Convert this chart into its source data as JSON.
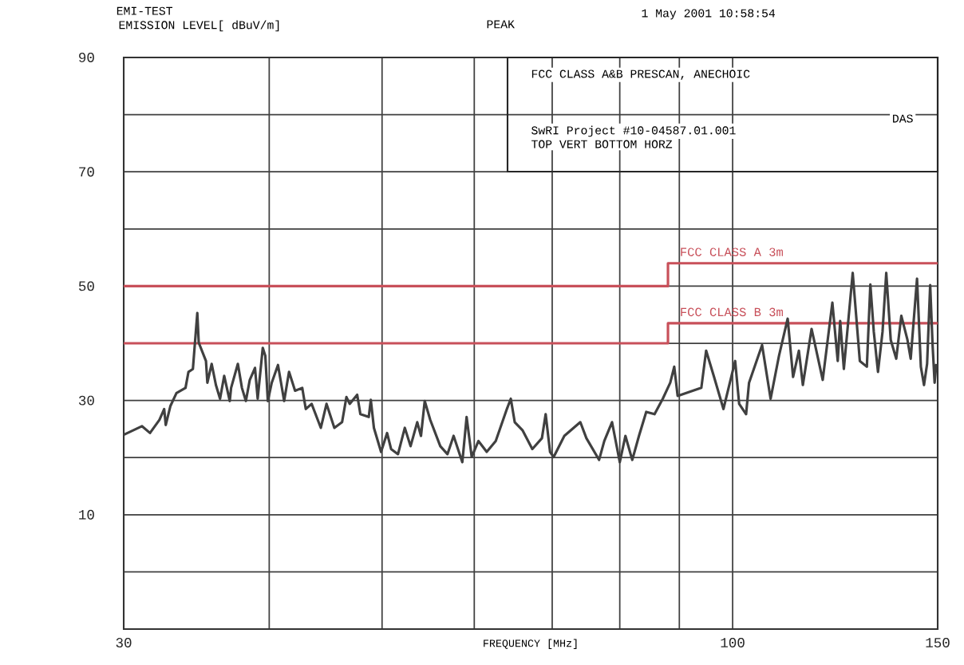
{
  "chart_data": {
    "type": "line",
    "title": "EMI-TEST",
    "xlabel": "FREQUENCY [MHz]",
    "annotations": [
      "EMISSION LEVEL[ dBuV/m]",
      "PEAK",
      "1 May 2001   10:58:54",
      "FCC CLASS A&B PRESCAN, ANECHOIC",
      "DAS",
      "SwRI Project #10-04587.01.001",
      "TOP VERT BOTTOM HORZ"
    ],
    "log": "x",
    "grid": true,
    "line_style": "solid",
    "xlim": [
      30,
      150
    ],
    "xticks": [
      30,
      {
        "value": 40,
        "label": null
      },
      {
        "value": 50,
        "label": null
      },
      {
        "value": 60,
        "label": null
      },
      {
        "value": 70,
        "label": null
      },
      {
        "value": 80,
        "label": null
      },
      {
        "value": 90,
        "label": null
      },
      100,
      150
    ],
    "ylim": [
      -10,
      90
    ],
    "yticks": [
      {
        "value": 0,
        "label": null
      },
      10,
      {
        "value": 20,
        "label": null
      },
      30,
      {
        "value": 40,
        "label": null
      },
      50,
      {
        "value": 60,
        "label": null
      },
      70,
      {
        "value": 80,
        "label": null
      },
      90
    ],
    "series": [
      {
        "name": "FCC CLASS A  3m",
        "color": "#c8505a",
        "x": [
          30,
          88,
          88,
          150
        ],
        "values": [
          50,
          50,
          54,
          54
        ]
      },
      {
        "name": "FCC CLASS B  3m",
        "color": "#c8505a",
        "x": [
          30,
          88,
          88,
          150
        ],
        "values": [
          40,
          40,
          43.5,
          43.5
        ]
      },
      {
        "color": "#404040",
        "x": [
          30,
          31.1,
          31.6,
          32.2,
          32.5,
          32.6,
          32.9,
          33.3,
          33.9,
          34.1,
          34.4,
          34.7,
          34.8,
          35.3,
          35.4,
          35.7,
          36.0,
          36.3,
          36.6,
          37.0,
          37.1,
          37.6,
          37.9,
          38.2,
          38.5,
          38.9,
          39.1,
          39.5,
          39.7,
          39.9,
          40.2,
          40.7,
          41.2,
          41.6,
          42.1,
          42.7,
          43.0,
          43.5,
          44.3,
          44.8,
          45.5,
          46.2,
          46.6,
          46.9,
          47.6,
          47.9,
          48.7,
          48.9,
          49.2,
          49.9,
          50.5,
          50.9,
          51.6,
          52.3,
          52.9,
          53.6,
          54.0,
          54.4,
          55.0,
          56.1,
          56.9,
          57.6,
          58.6,
          59.1,
          59.7,
          60.5,
          61.5,
          62.6,
          64.0,
          64.5,
          65.0,
          66.0,
          67.3,
          68.6,
          69.1,
          69.7,
          70.2,
          71.7,
          74.0,
          74.9,
          76.8,
          77.6,
          78.8,
          80.0,
          80.9,
          82.0,
          83.1,
          84.3,
          85.7,
          87.1,
          88.4,
          89.1,
          89.7,
          94.0,
          94.9,
          96.4,
          98.2,
          100.5,
          101.3,
          102.7,
          103.3,
          106.0,
          107.8,
          109.6,
          111.5,
          112.7,
          114.0,
          114.9,
          116.9,
          119.5,
          121.8,
          123.1,
          123.7,
          124.6,
          126.8,
          128.6,
          130.4,
          131.3,
          132.2,
          133.3,
          134.5,
          135.5,
          136.7,
          138.2,
          139.6,
          141.3,
          142.2,
          144.0,
          145.1,
          146.0,
          146.9,
          147.8,
          148.5,
          149.1,
          149.6
        ],
        "values": [
          24,
          25.5,
          24.3,
          26.6,
          28.5,
          25.7,
          29,
          31.3,
          32.2,
          35,
          35.5,
          45.3,
          40.1,
          36.9,
          33.1,
          36.4,
          32.7,
          30.3,
          34.3,
          29.9,
          32.2,
          36.4,
          32.2,
          29.9,
          33.6,
          35.7,
          30.3,
          39.2,
          37.8,
          29.9,
          33.1,
          36.2,
          29.9,
          35,
          31.7,
          32.2,
          28.5,
          29.4,
          25.2,
          29.4,
          25.2,
          26.2,
          30.6,
          29.4,
          31,
          27.6,
          27.1,
          30.1,
          25.2,
          21,
          24.3,
          21.5,
          20.6,
          25.2,
          22,
          26.2,
          23.8,
          29.9,
          26.6,
          22,
          20.6,
          23.8,
          19.2,
          27.1,
          20.1,
          22.9,
          21,
          22.9,
          28.5,
          30.3,
          26.2,
          24.8,
          21.5,
          23.4,
          27.6,
          21,
          20.1,
          23.8,
          26.2,
          23.4,
          19.6,
          22.9,
          26.2,
          19.2,
          23.8,
          19.6,
          23.8,
          28,
          27.6,
          30.3,
          33.1,
          35.9,
          30.8,
          32.2,
          38.7,
          34.1,
          28.5,
          36.9,
          29.4,
          27.6,
          33.1,
          39.7,
          30.3,
          37.8,
          44.3,
          34.1,
          38.7,
          32.7,
          42.5,
          33.6,
          47.1,
          36.9,
          43.9,
          35.5,
          52.3,
          36.9,
          35.9,
          50.3,
          42,
          35,
          42,
          52.3,
          40.6,
          37.3,
          44.8,
          40.6,
          37.3,
          51.3,
          35.9,
          32.7,
          36.4,
          50.2,
          39.7,
          33.1,
          36.4
        ]
      }
    ]
  }
}
